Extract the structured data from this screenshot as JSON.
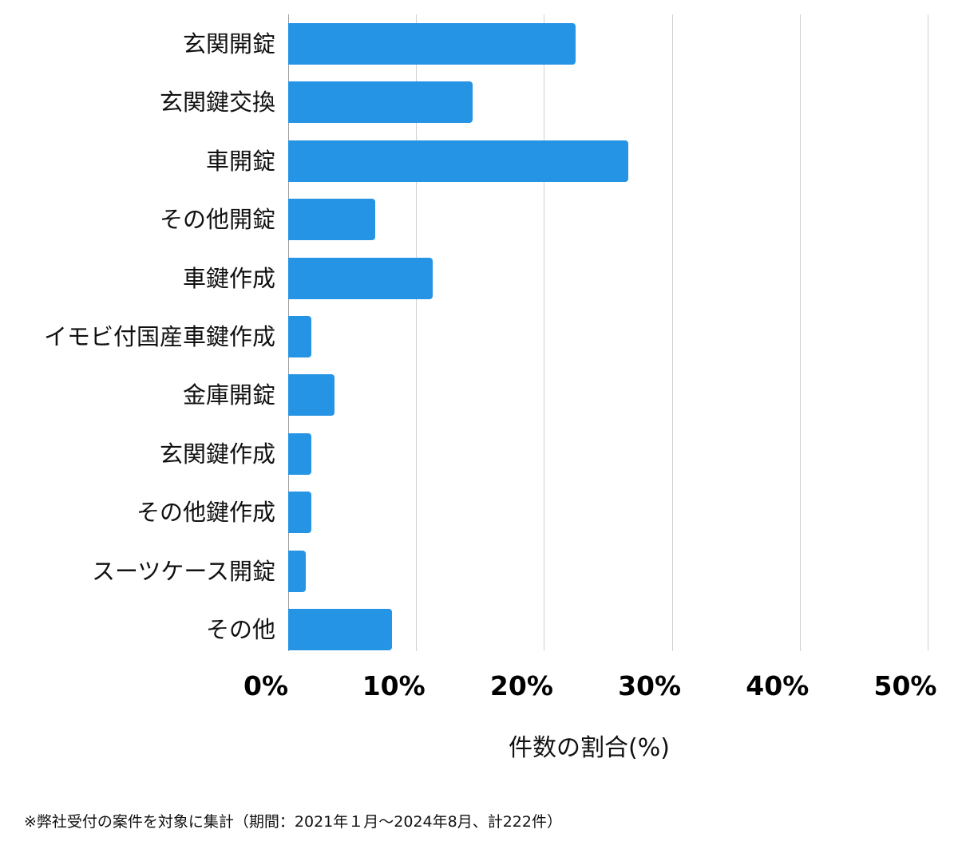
{
  "chart_data": {
    "type": "bar",
    "orientation": "horizontal",
    "title": "",
    "categories": [
      "玄関開錠",
      "玄関鍵交換",
      "車開錠",
      "その他開錠",
      "車鍵作成",
      "イモビ付国産車鍵作成",
      "金庫開錠",
      "玄関鍵作成",
      "その他鍵作成",
      "スーツケース開錠",
      "その他"
    ],
    "values": [
      22.5,
      14.4,
      26.6,
      6.8,
      11.3,
      1.8,
      3.6,
      1.8,
      1.8,
      1.4,
      8.1
    ],
    "xlabel": "件数の割合(%)",
    "ylabel": "",
    "xlim": [
      0,
      50
    ],
    "xticks": [
      "0%",
      "10%",
      "20%",
      "30%",
      "40%",
      "50%"
    ],
    "grid": true,
    "bar_color": "#2694e4",
    "note": "※弊社受付の案件を対象に集計（期間：2021年１月～2024年8月、計222件）"
  }
}
